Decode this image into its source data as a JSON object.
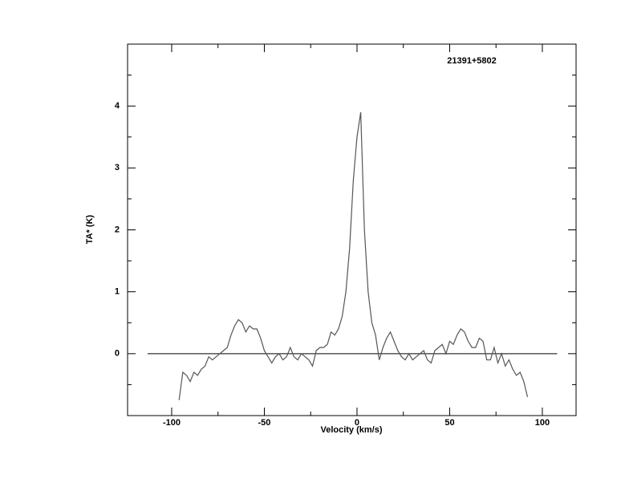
{
  "chart_data": {
    "type": "line",
    "title": "21391+5802",
    "x_label": "Velocity (km/s)",
    "y_label": "TA* (K)",
    "xlim": [
      -123.8,
      118.2
    ],
    "ylim": [
      -1,
      5
    ],
    "xticks": [
      -100,
      -50,
      0,
      50,
      100
    ],
    "yticks": [
      0,
      1,
      2,
      3,
      4
    ],
    "xminor": [
      -75,
      -25,
      25,
      75
    ],
    "yminor": [
      -0.5,
      0.5,
      1.5,
      2.5,
      3.5,
      4.5
    ],
    "baseline": {
      "value": 0,
      "x": [
        -113,
        108
      ]
    },
    "color": "#555555",
    "x": [
      -96,
      -94,
      -92,
      -90,
      -88,
      -86,
      -84,
      -82,
      -80,
      -78,
      -76,
      -74,
      -72,
      -70,
      -68,
      -66,
      -64,
      -62,
      -60,
      -58,
      -56,
      -54,
      -52,
      -50,
      -48,
      -46,
      -44,
      -42,
      -40,
      -38,
      -36,
      -34,
      -32,
      -30,
      -28,
      -26,
      -24,
      -22,
      -20,
      -18,
      -16,
      -14,
      -12,
      -10,
      -8,
      -6,
      -4,
      -2,
      0,
      2,
      4,
      6,
      8,
      10,
      12,
      14,
      16,
      18,
      20,
      22,
      24,
      26,
      28,
      30,
      32,
      34,
      36,
      38,
      40,
      42,
      44,
      46,
      48,
      50,
      52,
      54,
      56,
      58,
      60,
      62,
      64,
      66,
      68,
      70,
      72,
      74,
      76,
      78,
      80,
      82,
      84,
      86,
      88,
      90,
      92
    ],
    "values": [
      -0.75,
      -0.3,
      -0.35,
      -0.45,
      -0.3,
      -0.35,
      -0.25,
      -0.2,
      -0.05,
      -0.1,
      -0.05,
      0.0,
      0.05,
      0.1,
      0.3,
      0.45,
      0.55,
      0.5,
      0.35,
      0.45,
      0.4,
      0.4,
      0.25,
      0.05,
      -0.05,
      -0.15,
      -0.05,
      0.0,
      -0.1,
      -0.05,
      0.1,
      -0.05,
      -0.1,
      0.0,
      -0.05,
      -0.1,
      -0.2,
      0.05,
      0.1,
      0.1,
      0.15,
      0.35,
      0.3,
      0.4,
      0.6,
      1.0,
      1.7,
      2.8,
      3.5,
      3.9,
      2.0,
      1.0,
      0.5,
      0.3,
      -0.1,
      0.1,
      0.25,
      0.35,
      0.2,
      0.05,
      -0.05,
      -0.1,
      0.0,
      -0.1,
      -0.05,
      0.0,
      0.05,
      -0.1,
      -0.15,
      0.05,
      0.1,
      0.15,
      0.0,
      0.2,
      0.15,
      0.3,
      0.4,
      0.35,
      0.2,
      0.1,
      0.1,
      0.25,
      0.2,
      -0.1,
      -0.1,
      0.1,
      -0.15,
      0.0,
      -0.2,
      -0.1,
      -0.25,
      -0.35,
      -0.3,
      -0.45,
      -0.7
    ]
  }
}
